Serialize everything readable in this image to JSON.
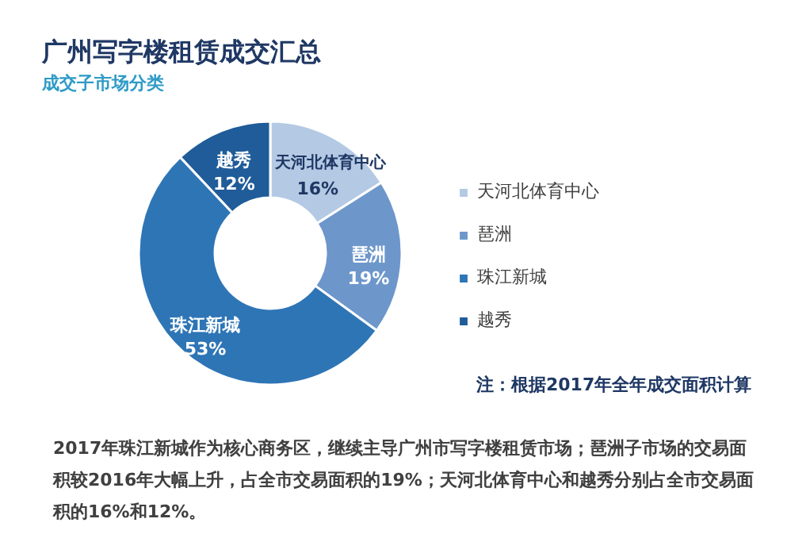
{
  "chart_data": {
    "type": "donut",
    "title": "广州写字楼租赁成交汇总",
    "subtitle": "成交子市场分类",
    "categories": [
      "天河北体育中心",
      "琶洲",
      "珠江新城",
      "越秀"
    ],
    "values": [
      16,
      19,
      53,
      12
    ],
    "colors": [
      "#b4c9e4",
      "#6d97cb",
      "#2e75b6",
      "#1f5c99"
    ],
    "value_labels": [
      "16%",
      "19%",
      "53%",
      "12%"
    ],
    "data_labels": true,
    "legend": "right",
    "annotations": [
      "注：根据2017年全年成交面积计算",
      "2017年珠江新城作为核心商务区，继续主导广州市写字楼租赁市场；琶洲子市场的交易面积较2016年大幅上升，占全市交易面积的19%；天河北体育中心和越秀分别占全市交易面积的16%和12%。"
    ]
  }
}
